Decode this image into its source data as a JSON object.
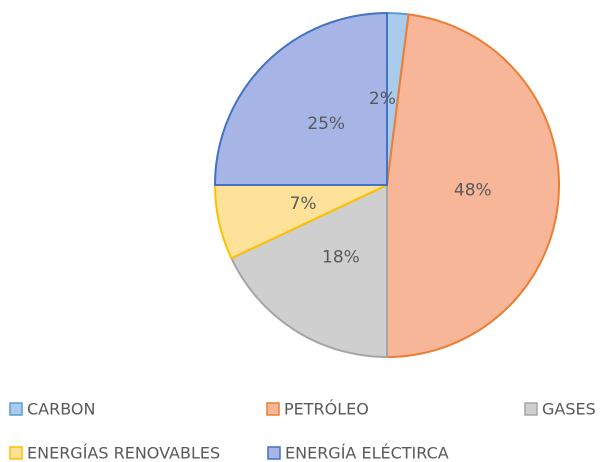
{
  "chart_data": {
    "type": "pie",
    "categories": [
      "CARBON",
      "PETRÓLEO",
      "GASES",
      "ENERGÍAS RENOVABLES",
      "ENERGÍA ELÉCTIRCA"
    ],
    "values": [
      2,
      48,
      18,
      7,
      25
    ],
    "value_labels": [
      "2%",
      "48%",
      "18%",
      "7%",
      "25%"
    ],
    "colors": [
      "#a9cbec",
      "#f6b697",
      "#cfcfcf",
      "#fee29a",
      "#a6b5e5"
    ],
    "edgecolors": [
      "#5b9bd5",
      "#ed7d31",
      "#a5a5a5",
      "#ffc000",
      "#4472c4"
    ],
    "legend": "bottom"
  }
}
